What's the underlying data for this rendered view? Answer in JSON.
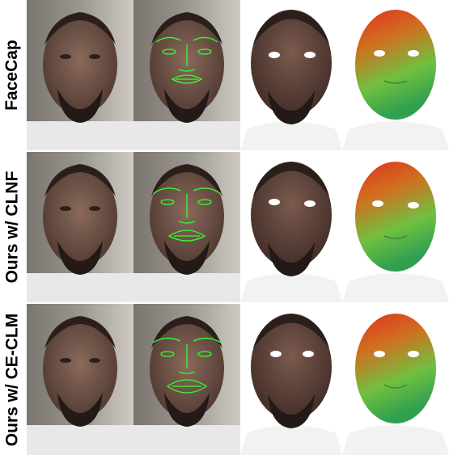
{
  "rows": [
    {
      "label": "FaceCap"
    },
    {
      "label": "Ours w/ CLNF"
    },
    {
      "label": "Ours w/ CE-CLM"
    }
  ],
  "colors": {
    "landmark": "#33ff33",
    "skin": "#6e4f44",
    "mesh_gradient": [
      "#e03020",
      "#d07020",
      "#60c040",
      "#30a050"
    ]
  }
}
